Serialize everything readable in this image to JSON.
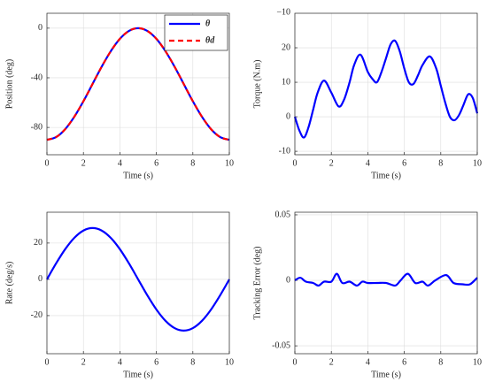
{
  "chart_data": [
    {
      "type": "line",
      "xlabel": "Time (s)",
      "ylabel": "Position (deg)",
      "x": [
        0,
        0.5,
        1,
        1.5,
        2,
        2.5,
        3,
        3.5,
        4,
        4.5,
        5,
        5.5,
        6,
        6.5,
        7,
        7.5,
        8,
        8.5,
        9,
        9.5,
        10
      ],
      "series": [
        {
          "name": "θ",
          "color": "#0000ff",
          "dash": false,
          "values": [
            -90,
            -87.8,
            -81.41,
            -71.41,
            -58.91,
            -45,
            -31.09,
            -18.59,
            -8.59,
            -2.2,
            0,
            -2.2,
            -8.59,
            -18.59,
            -31.09,
            -45,
            -58.91,
            -71.41,
            -81.41,
            -87.8,
            -90
          ]
        },
        {
          "name": "θd",
          "color": "#ff0000",
          "dash": true,
          "values": [
            -90,
            -87.8,
            -81.41,
            -71.41,
            -58.91,
            -45,
            -31.09,
            -18.59,
            -8.59,
            -2.2,
            0,
            -2.2,
            -8.59,
            -18.59,
            -31.09,
            -45,
            -58.91,
            -71.41,
            -81.41,
            -87.8,
            -90
          ]
        }
      ],
      "xlim": [
        0,
        10
      ],
      "xticks": [
        0,
        2,
        4,
        6,
        8,
        10
      ],
      "ylim": [
        -102,
        12
      ],
      "yticks": [
        -80,
        -40,
        0
      ],
      "grid": true,
      "legend": "upper right"
    },
    {
      "type": "line",
      "xlabel": "Time (s)",
      "ylabel": "Torque (N.m)",
      "annotation": "−10",
      "x": [
        0,
        0.25,
        0.5,
        0.75,
        1,
        1.25,
        1.6,
        2,
        2.4,
        2.7,
        3,
        3.25,
        3.6,
        4,
        4.25,
        4.5,
        4.75,
        5,
        5.25,
        5.5,
        5.75,
        6,
        6.25,
        6.5,
        6.75,
        7,
        7.4,
        7.75,
        8,
        8.25,
        8.5,
        8.75,
        9,
        9.25,
        9.5,
        9.75,
        10
      ],
      "series": [
        {
          "name": "Torque",
          "color": "#0000ff",
          "dash": false,
          "values": [
            0,
            -4,
            -6,
            -3,
            2,
            7,
            10.5,
            7,
            3,
            5,
            10,
            15,
            18,
            13,
            11,
            10,
            13,
            17,
            21,
            22,
            19,
            14,
            10,
            9.5,
            12,
            15,
            17.5,
            14,
            9,
            4,
            0,
            -1,
            0.5,
            3.5,
            6.5,
            5.5,
            1
          ]
        }
      ],
      "xlim": [
        0,
        10
      ],
      "xticks": [
        0,
        2,
        4,
        6,
        8,
        10
      ],
      "ylim": [
        -11,
        30
      ],
      "yticks": [
        -10,
        0,
        10,
        20
      ],
      "grid": true
    },
    {
      "type": "line",
      "xlabel": "Time (s)",
      "ylabel": "Rate (deg/s)",
      "x": [
        0,
        0.5,
        1,
        1.5,
        2,
        2.5,
        3,
        3.5,
        4,
        4.5,
        5,
        5.5,
        6,
        6.5,
        7,
        7.5,
        8,
        8.5,
        9,
        9.5,
        10
      ],
      "series": [
        {
          "name": "Rate",
          "color": "#0000ff",
          "dash": false,
          "values": [
            0,
            8.74,
            16.62,
            22.87,
            26.89,
            28.27,
            26.89,
            22.87,
            16.62,
            8.74,
            0,
            -8.74,
            -16.62,
            -22.87,
            -26.89,
            -28.27,
            -26.89,
            -22.87,
            -16.62,
            -8.74,
            0
          ]
        }
      ],
      "xlim": [
        0,
        10
      ],
      "xticks": [
        0,
        2,
        4,
        6,
        8,
        10
      ],
      "ylim": [
        -41,
        37
      ],
      "yticks": [
        -20,
        0,
        20
      ],
      "grid": true
    },
    {
      "type": "line",
      "xlabel": "Time (s)",
      "ylabel": "Tracking Error (deg)",
      "x": [
        0,
        0.3,
        0.6,
        1,
        1.3,
        1.6,
        2,
        2.3,
        2.6,
        3,
        3.4,
        3.7,
        4,
        4.5,
        5,
        5.5,
        5.8,
        6.2,
        6.6,
        7,
        7.3,
        7.7,
        8.3,
        8.7,
        9.2,
        9.6,
        10
      ],
      "series": [
        {
          "name": "Error",
          "color": "#0000ff",
          "dash": false,
          "values": [
            0,
            0.002,
            -0.001,
            -0.002,
            -0.004,
            -0.001,
            -0.001,
            0.005,
            -0.002,
            -0.001,
            -0.004,
            -0.001,
            -0.002,
            -0.002,
            -0.002,
            -0.004,
            0,
            0.005,
            -0.002,
            -0.001,
            -0.004,
            0,
            0.004,
            -0.002,
            -0.003,
            -0.003,
            0.002
          ]
        }
      ],
      "xlim": [
        0,
        10
      ],
      "xticks": [
        0,
        2,
        4,
        6,
        8,
        10
      ],
      "ylim": [
        -0.056,
        0.052
      ],
      "yticks": [
        -0.05,
        0,
        0.05
      ],
      "grid": true
    }
  ]
}
